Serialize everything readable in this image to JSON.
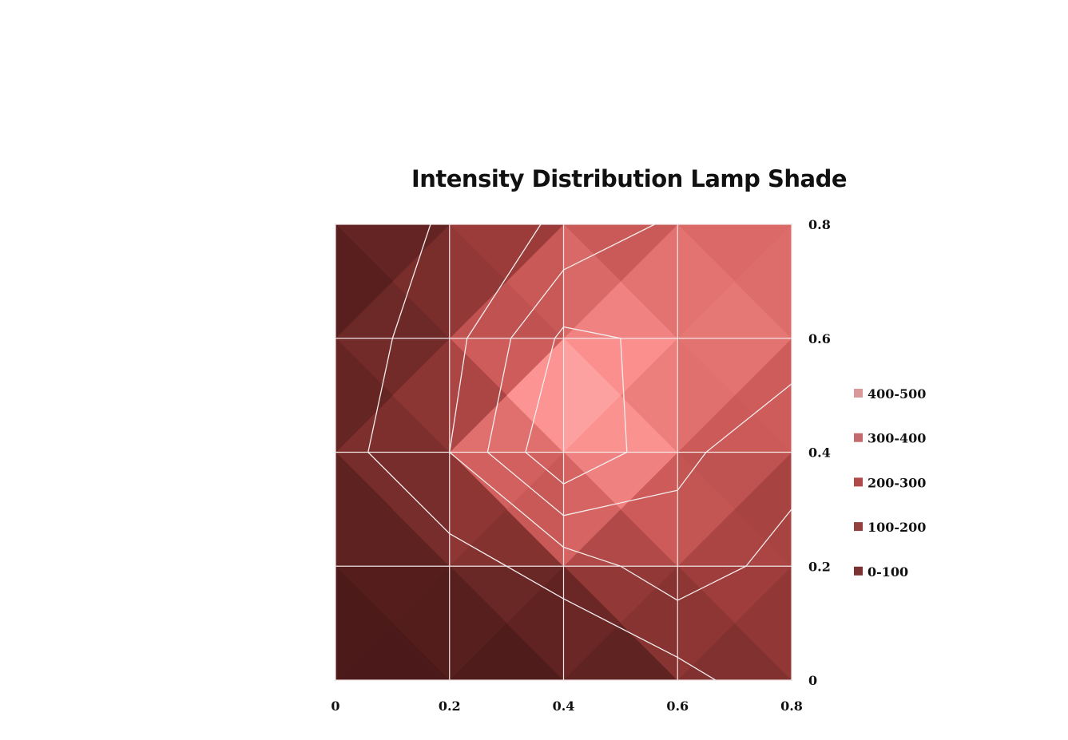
{
  "chart_data": {
    "type": "surface-contour",
    "title": "Intensity Distribution Lamp Shade",
    "x_ticks": [
      "0",
      "0.2",
      "0.4",
      "0.6",
      "0.8"
    ],
    "y_ticks": [
      "0",
      "0.2",
      "0.4",
      "0.6",
      "0.8"
    ],
    "x_values": [
      0,
      0.2,
      0.4,
      0.6,
      0.8
    ],
    "y_values": [
      0,
      0.2,
      0.4,
      0.6,
      0.8
    ],
    "xlim": [
      0,
      0.8
    ],
    "ylim": [
      0,
      0.8
    ],
    "y_axis_side": "right",
    "grid": true,
    "z_grid": [
      [
        0,
        0,
        0,
        60,
        180
      ],
      [
        20,
        60,
        140,
        260,
        160
      ],
      [
        60,
        200,
        500,
        320,
        240
      ],
      [
        40,
        160,
        420,
        380,
        340
      ],
      [
        0,
        120,
        220,
        320,
        320
      ]
    ],
    "contour_levels": [
      100,
      200,
      300,
      400
    ],
    "legend_position": "right",
    "legend": [
      {
        "label": "400-500",
        "color": "#d9999a"
      },
      {
        "label": "300-400",
        "color": "#c46a6c"
      },
      {
        "label": "200-300",
        "color": "#b04a48"
      },
      {
        "label": "100-200",
        "color": "#93403f"
      },
      {
        "label": "0-100",
        "color": "#7a3332"
      }
    ]
  }
}
